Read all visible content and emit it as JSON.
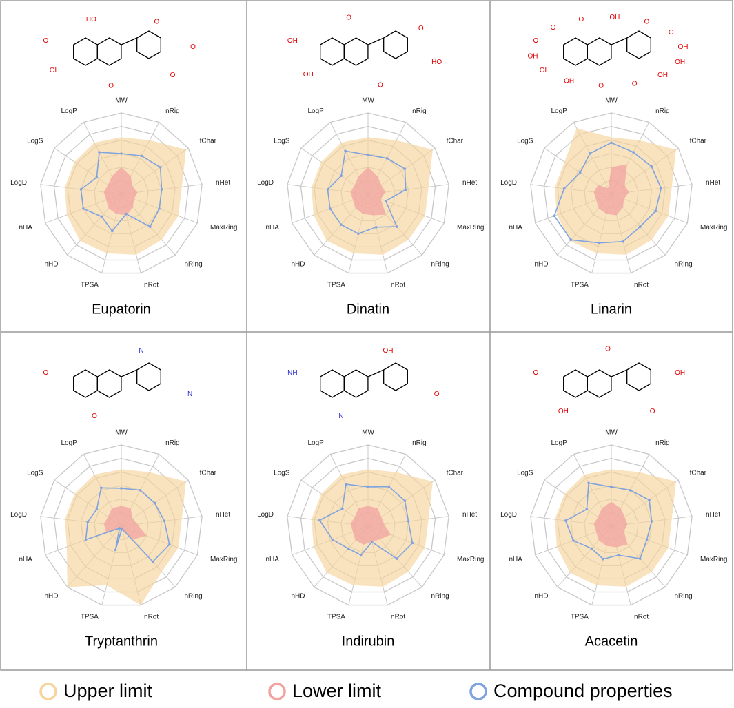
{
  "chart_data": [
    {
      "type": "radar",
      "title": "Eupatorin",
      "categories": [
        "MW",
        "nRig",
        "fChar",
        "nHet",
        "MaxRing",
        "nRing",
        "nRot",
        "TPSA",
        "nHD",
        "nHA",
        "LogD",
        "LogS",
        "LogP"
      ],
      "rlim": [
        0,
        6
      ],
      "rticks": [
        1,
        2,
        3,
        4,
        5,
        6
      ],
      "molecule": {
        "atoms": [
          "O",
          "HO",
          "O",
          "O",
          "O",
          "O",
          "OH"
        ]
      },
      "series": [
        {
          "name": "Upper limit",
          "color": "#f6d49c",
          "values": [
            4.2,
            4.5,
            5.8,
            4.5,
            4.5,
            4.5,
            4.6,
            4.5,
            4.6,
            4.3,
            4.2,
            4.2,
            4.3
          ]
        },
        {
          "name": "Lower limit",
          "color": "#f2a3a0",
          "values": [
            2.0,
            1.5,
            1.0,
            1.2,
            1.0,
            1.3,
            1.6,
            1.5,
            1.4,
            1.2,
            1.3,
            1.2,
            1.5
          ]
        },
        {
          "name": "Compound properties",
          "color": "#7fa3df",
          "values": [
            3.0,
            3.2,
            3.5,
            3.0,
            3.0,
            3.2,
            1.5,
            2.8,
            2.2,
            3.0,
            3.0,
            2.2,
            3.5
          ]
        }
      ]
    },
    {
      "type": "radar",
      "title": "Dinatin",
      "categories": [
        "MW",
        "nRig",
        "fChar",
        "nHet",
        "MaxRing",
        "nRing",
        "nRot",
        "TPSA",
        "nHD",
        "nHA",
        "LogD",
        "LogS",
        "LogP"
      ],
      "rlim": [
        0,
        6
      ],
      "rticks": [
        1,
        2,
        3,
        4,
        5,
        6
      ],
      "molecule": {
        "atoms": [
          "OH",
          "O",
          "O",
          "HO",
          "O",
          "OH"
        ]
      },
      "series": [
        {
          "name": "Upper limit",
          "color": "#f6d49c",
          "values": [
            4.2,
            4.5,
            5.8,
            4.5,
            4.5,
            4.5,
            4.6,
            4.5,
            4.6,
            4.3,
            4.2,
            4.2,
            4.3
          ]
        },
        {
          "name": "Lower limit",
          "color": "#f2a3a0",
          "values": [
            2.0,
            1.5,
            1.2,
            1.3,
            1.0,
            2.0,
            1.6,
            1.5,
            1.4,
            1.2,
            1.3,
            1.2,
            1.5
          ]
        },
        {
          "name": "Compound properties",
          "color": "#7fa3df",
          "values": [
            2.9,
            3.0,
            3.3,
            2.8,
            1.4,
            3.2,
            2.5,
            3.0,
            3.0,
            3.0,
            3.0,
            2.4,
            3.6
          ]
        }
      ]
    },
    {
      "type": "radar",
      "title": "Linarin",
      "categories": [
        "MW",
        "nRig",
        "fChar",
        "nHet",
        "MaxRing",
        "nRing",
        "nRot",
        "TPSA",
        "nHD",
        "nHA",
        "LogD",
        "LogS",
        "LogP"
      ],
      "rlim": [
        0,
        6
      ],
      "rticks": [
        1,
        2,
        3,
        4,
        5,
        6
      ],
      "molecule": {
        "atoms": [
          "O",
          "O",
          "O",
          "OH",
          "O",
          "O",
          "OH",
          "OH",
          "OH",
          "O",
          "O",
          "OH",
          "OH",
          "OH"
        ]
      },
      "series": [
        {
          "name": "Upper limit",
          "color": "#f6d49c",
          "values": [
            4.2,
            4.5,
            5.8,
            4.5,
            4.5,
            4.5,
            4.6,
            4.5,
            4.6,
            4.3,
            4.2,
            4.2,
            5.5
          ]
        },
        {
          "name": "Lower limit",
          "color": "#f2a3a0",
          "values": [
            2.0,
            2.5,
            1.2,
            1.3,
            1.0,
            1.3,
            1.6,
            1.5,
            1.4,
            1.2,
            1.3,
            1.2,
            0.5
          ]
        },
        {
          "name": "Compound properties",
          "color": "#7fa3df",
          "values": [
            3.8,
            3.5,
            3.6,
            3.7,
            3.5,
            3.2,
            3.6,
            3.7,
            4.5,
            4.5,
            3.5,
            2.8,
            3.4
          ]
        }
      ]
    },
    {
      "type": "radar",
      "title": "Tryptanthrin",
      "categories": [
        "MW",
        "nRig",
        "fChar",
        "nHet",
        "MaxRing",
        "nRing",
        "nRot",
        "TPSA",
        "nHD",
        "nHA",
        "LogD",
        "LogS",
        "LogP"
      ],
      "rlim": [
        0,
        6
      ],
      "rticks": [
        1,
        2,
        3,
        4,
        5,
        6
      ],
      "molecule": {
        "atoms": [
          "O",
          "N",
          "N",
          "O"
        ]
      },
      "series": [
        {
          "name": "Upper limit",
          "color": "#f6d49c",
          "values": [
            4.2,
            4.5,
            5.8,
            4.5,
            4.5,
            4.5,
            6.0,
            4.5,
            6.0,
            4.3,
            4.2,
            4.2,
            4.3
          ]
        },
        {
          "name": "Lower limit",
          "color": "#f2a3a0",
          "values": [
            1.5,
            1.5,
            1.0,
            1.2,
            2.0,
            1.3,
            0.2,
            0.3,
            0.2,
            1.2,
            1.3,
            1.2,
            1.5
          ]
        },
        {
          "name": "Compound properties",
          "color": "#7fa3df",
          "values": [
            2.8,
            3.0,
            3.0,
            3.2,
            3.8,
            3.5,
            0.2,
            1.8,
            0.2,
            2.8,
            2.5,
            2.2,
            3.2
          ]
        }
      ]
    },
    {
      "type": "radar",
      "title": "Indirubin",
      "categories": [
        "MW",
        "nRig",
        "fChar",
        "nHet",
        "MaxRing",
        "nRing",
        "nRot",
        "TPSA",
        "nHD",
        "nHA",
        "LogD",
        "LogS",
        "LogP"
      ],
      "rlim": [
        0,
        6
      ],
      "rticks": [
        1,
        2,
        3,
        4,
        5,
        6
      ],
      "molecule": {
        "atoms": [
          "NH",
          "OH",
          "O",
          "N"
        ]
      },
      "series": [
        {
          "name": "Upper limit",
          "color": "#f6d49c",
          "values": [
            4.2,
            4.5,
            5.8,
            4.5,
            4.5,
            4.5,
            4.6,
            4.5,
            4.6,
            4.3,
            4.2,
            4.2,
            4.3
          ]
        },
        {
          "name": "Lower limit",
          "color": "#f2a3a0",
          "values": [
            1.5,
            1.5,
            1.2,
            1.2,
            1.8,
            1.3,
            1.2,
            1.4,
            1.4,
            1.2,
            1.3,
            1.2,
            1.5
          ]
        },
        {
          "name": "Compound properties",
          "color": "#7fa3df",
          "values": [
            2.9,
            3.3,
            3.3,
            3.0,
            3.5,
            3.2,
            1.2,
            2.2,
            2.2,
            2.8,
            3.6,
            2.3,
            3.5
          ]
        }
      ]
    },
    {
      "type": "radar",
      "title": "Acacetin",
      "categories": [
        "MW",
        "nRig",
        "fChar",
        "nHet",
        "MaxRing",
        "nRing",
        "nRot",
        "TPSA",
        "nHD",
        "nHA",
        "LogD",
        "LogS",
        "LogP"
      ],
      "rlim": [
        0,
        6
      ],
      "rticks": [
        1,
        2,
        3,
        4,
        5,
        6
      ],
      "molecule": {
        "atoms": [
          "O",
          "O",
          "OH",
          "O",
          "OH"
        ]
      },
      "series": [
        {
          "name": "Upper limit",
          "color": "#f6d49c",
          "values": [
            4.2,
            4.5,
            5.8,
            4.5,
            4.5,
            4.5,
            4.6,
            4.5,
            4.6,
            4.3,
            4.2,
            4.2,
            4.3
          ]
        },
        {
          "name": "Lower limit",
          "color": "#f2a3a0",
          "values": [
            1.8,
            1.5,
            1.2,
            1.2,
            1.0,
            1.8,
            1.6,
            1.5,
            1.4,
            1.2,
            1.3,
            1.2,
            1.5
          ]
        },
        {
          "name": "Compound properties",
          "color": "#7fa3df",
          "values": [
            2.9,
            3.0,
            3.4,
            3.0,
            2.8,
            3.2,
            2.2,
            2.5,
            2.2,
            3.0,
            3.4,
            2.2,
            3.6
          ]
        }
      ]
    }
  ]
}
